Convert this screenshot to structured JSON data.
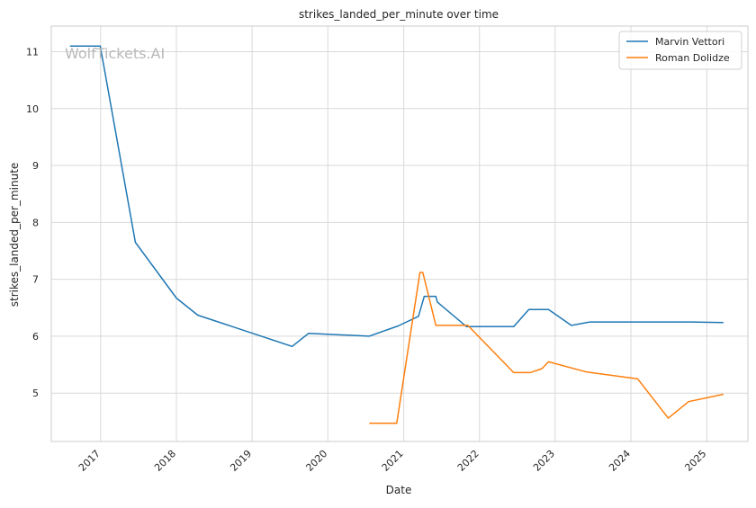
{
  "chart_data": {
    "type": "line",
    "title": "strikes_landed_per_minute over time",
    "xlabel": "Date",
    "ylabel": "strikes_landed_per_minute",
    "watermark": "WolfTickets.AI",
    "x_tick_labels": [
      "2017",
      "2018",
      "2019",
      "2020",
      "2021",
      "2022",
      "2023",
      "2024",
      "2025"
    ],
    "y_tick_labels": [
      "5",
      "6",
      "7",
      "8",
      "9",
      "10",
      "11"
    ],
    "xlim": [
      "2016-05-08",
      "2025-07-18"
    ],
    "ylim": [
      4.15,
      11.45
    ],
    "grid": true,
    "legend_position": "top-right",
    "colors": {
      "Marvin Vettori": "#1f77b4",
      "Roman Dolidze": "#ff7f0e",
      "grid": "#d9d9d9",
      "axes": "#cccccc"
    },
    "series": [
      {
        "name": "Marvin Vettori",
        "color": "#1f77b4",
        "points": [
          [
            "2016-08-06",
            11.1
          ],
          [
            "2016-12-30",
            11.1
          ],
          [
            "2017-06-17",
            7.65
          ],
          [
            "2018-01-01",
            6.67
          ],
          [
            "2018-04-14",
            6.37
          ],
          [
            "2019-07-13",
            5.82
          ],
          [
            "2019-09-30",
            6.05
          ],
          [
            "2020-07-18",
            6.0
          ],
          [
            "2020-12-05",
            6.18
          ],
          [
            "2021-03-13",
            6.35
          ],
          [
            "2021-04-10",
            6.7
          ],
          [
            "2021-06-05",
            6.7
          ],
          [
            "2021-06-12",
            6.6
          ],
          [
            "2021-10-30",
            6.17
          ],
          [
            "2022-06-15",
            6.17
          ],
          [
            "2022-08-27",
            6.47
          ],
          [
            "2022-11-30",
            6.47
          ],
          [
            "2023-03-20",
            6.19
          ],
          [
            "2023-06-17",
            6.25
          ],
          [
            "2024-10-15",
            6.25
          ],
          [
            "2025-03-22",
            6.24
          ]
        ]
      },
      {
        "name": "Roman Dolidze",
        "color": "#ff7f0e",
        "points": [
          [
            "2020-07-19",
            4.47
          ],
          [
            "2020-11-28",
            4.47
          ],
          [
            "2021-03-20",
            7.12
          ],
          [
            "2021-04-03",
            7.12
          ],
          [
            "2021-06-05",
            6.19
          ],
          [
            "2021-11-06",
            6.19
          ],
          [
            "2022-06-15",
            5.36
          ],
          [
            "2022-09-03",
            5.36
          ],
          [
            "2022-10-29",
            5.43
          ],
          [
            "2022-11-30",
            5.55
          ],
          [
            "2023-06-03",
            5.37
          ],
          [
            "2024-02-03",
            5.25
          ],
          [
            "2024-06-29",
            4.56
          ],
          [
            "2024-10-05",
            4.85
          ],
          [
            "2025-03-22",
            4.98
          ]
        ]
      }
    ]
  }
}
